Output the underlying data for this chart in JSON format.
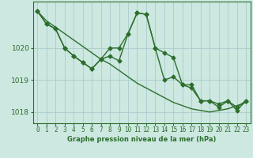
{
  "background_color": "#cce8e0",
  "grid_color": "#aacccc",
  "line_color": "#2d6e2d",
  "ylabel_ticks": [
    1018,
    1019,
    1020
  ],
  "xlim": [
    -0.5,
    23.5
  ],
  "ylim": [
    1017.65,
    1021.45
  ],
  "xlabel": "Graphe pression niveau de la mer (hPa)",
  "line1_x": [
    0,
    1,
    2,
    3,
    4,
    5,
    6,
    7,
    8,
    9,
    10,
    11,
    12,
    13,
    14,
    15,
    16,
    17,
    18,
    19,
    20,
    21,
    22,
    23
  ],
  "line1_y": [
    1021.15,
    1020.85,
    1020.65,
    1020.45,
    1020.25,
    1020.05,
    1019.85,
    1019.65,
    1019.5,
    1019.3,
    1019.1,
    1018.9,
    1018.75,
    1018.6,
    1018.45,
    1018.3,
    1018.2,
    1018.1,
    1018.05,
    1018.0,
    1018.05,
    1018.1,
    1018.2,
    1018.3
  ],
  "line2_x": [
    0,
    1,
    2,
    3,
    4,
    5,
    6,
    7,
    8,
    9,
    10,
    11,
    12,
    13,
    14,
    15,
    16,
    17,
    18,
    19,
    20,
    21,
    22,
    23
  ],
  "line2_y": [
    1021.15,
    1020.75,
    1020.6,
    1020.0,
    1019.75,
    1019.55,
    1019.35,
    1019.65,
    1020.0,
    1020.0,
    1020.45,
    1021.1,
    1021.05,
    1020.0,
    1019.85,
    1019.7,
    1018.85,
    1018.75,
    1018.35,
    1018.35,
    1018.25,
    1018.35,
    1018.15,
    1018.35
  ],
  "line3_x": [
    0,
    1,
    2,
    3,
    4,
    5,
    6,
    7,
    8,
    9,
    10,
    11,
    12,
    13,
    14,
    15,
    16,
    17,
    18,
    19,
    20,
    21,
    22,
    23
  ],
  "line3_y": [
    1021.15,
    1020.75,
    1020.6,
    1020.0,
    1019.75,
    1019.55,
    1019.35,
    1019.65,
    1019.75,
    1019.6,
    1020.45,
    1021.1,
    1021.05,
    1020.0,
    1019.0,
    1019.1,
    1018.85,
    1018.85,
    1018.35,
    1018.35,
    1018.15,
    1018.35,
    1018.05,
    1018.35
  ],
  "xtick_labels": [
    "0",
    "1",
    "2",
    "3",
    "4",
    "5",
    "6",
    "7",
    "8",
    "9",
    "10",
    "11",
    "12",
    "13",
    "14",
    "15",
    "16",
    "17",
    "18",
    "19",
    "20",
    "21",
    "22",
    "23"
  ],
  "marker": "D",
  "markersize": 2.5,
  "linewidth": 1.0
}
